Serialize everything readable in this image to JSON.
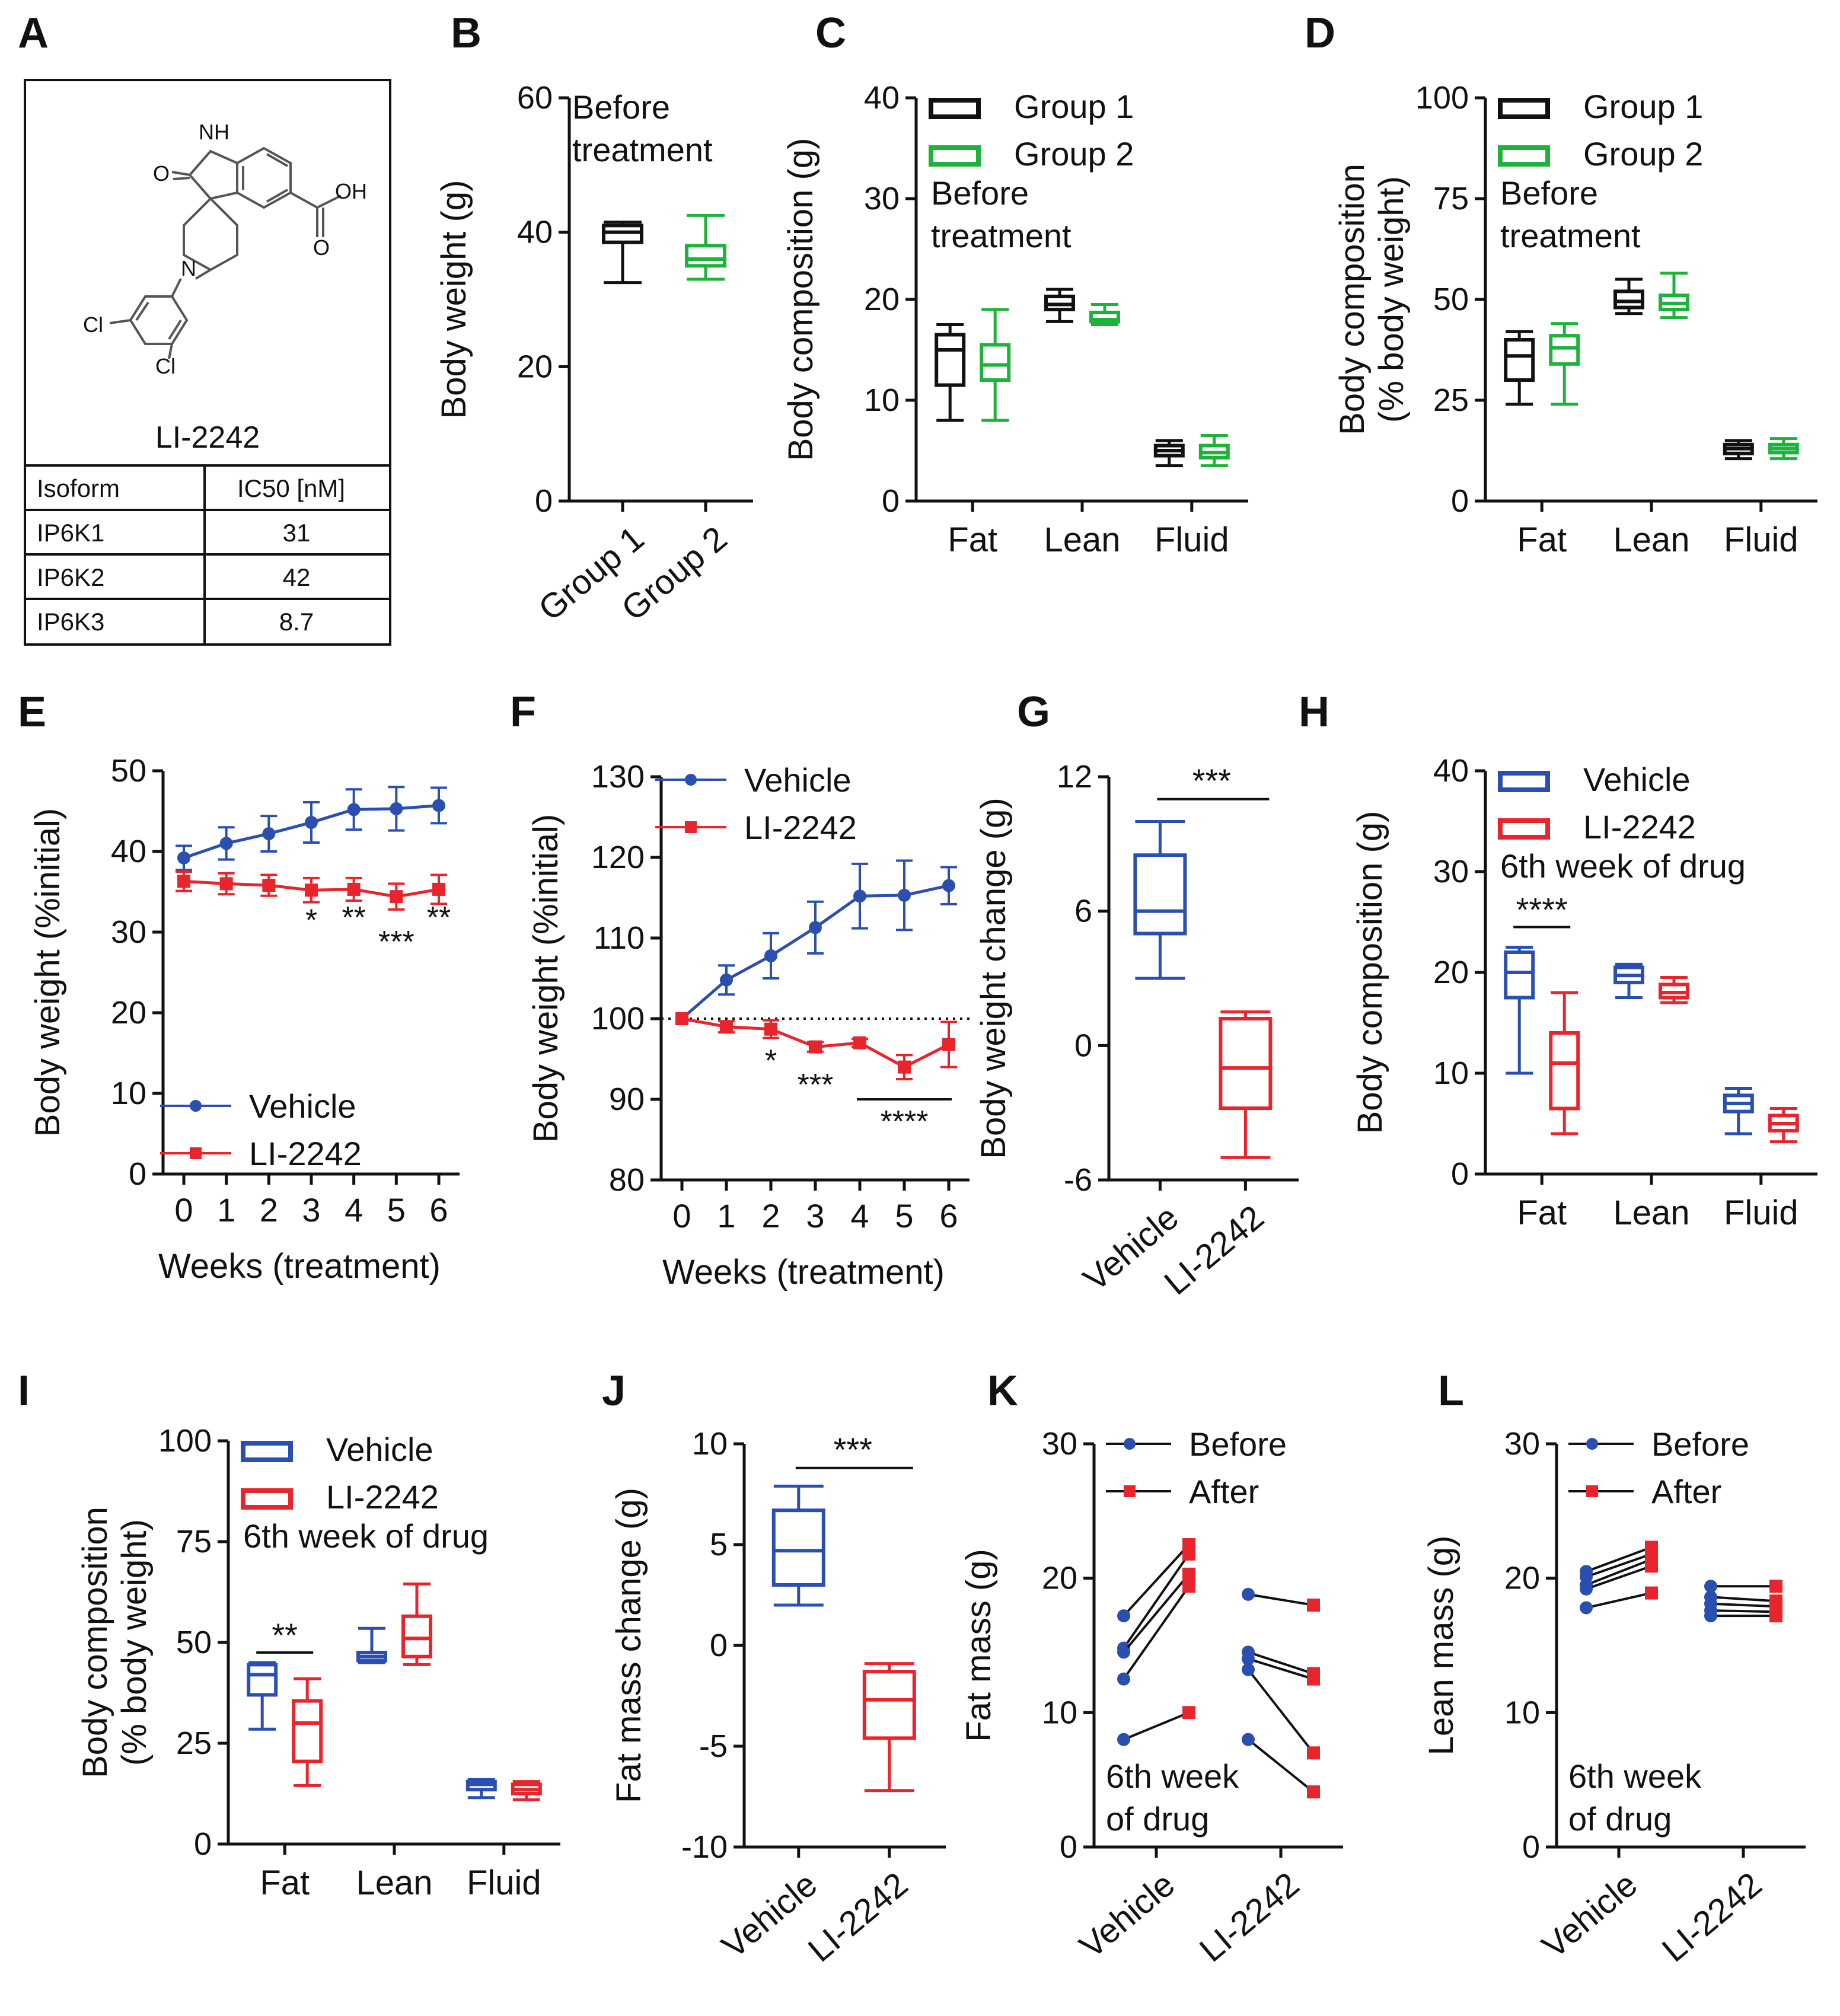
{
  "colors": {
    "black": "#111111",
    "green": "#1db33a",
    "blue": "#2a4fb0",
    "red": "#e8242c"
  },
  "panelA": {
    "letter": "A",
    "compound": "LI-2242",
    "atoms": [
      "O",
      "NH",
      "OH",
      "O",
      "N",
      "Cl",
      "Cl"
    ],
    "table": {
      "headers": [
        "Isoform",
        "IC50 [nM]"
      ],
      "rows": [
        [
          "IP6K1",
          "31"
        ],
        [
          "IP6K2",
          "42"
        ],
        [
          "IP6K3",
          "8.7"
        ]
      ]
    }
  },
  "chart_data": [
    {
      "id": "B",
      "type": "box",
      "letter": "B",
      "ylabel": "Body weight (g)",
      "ylim": [
        0,
        60
      ],
      "yticks": [
        "0",
        "20",
        "40",
        "60"
      ],
      "categories": [
        "Group 1",
        "Group 2"
      ],
      "annotation": [
        "Before",
        "treatment"
      ],
      "boxes": [
        {
          "series": "Group 1",
          "color": "black",
          "min": 32.5,
          "q1": 38.5,
          "median": 40,
          "q3": 41,
          "max": 41.5
        },
        {
          "series": "Group 2",
          "color": "green",
          "min": 33,
          "q1": 35,
          "median": 36,
          "q3": 38,
          "max": 42.5
        }
      ]
    },
    {
      "id": "C",
      "type": "box",
      "letter": "C",
      "ylabel": "Body composition (g)",
      "ylim": [
        0,
        40
      ],
      "yticks": [
        "0",
        "10",
        "20",
        "30",
        "40"
      ],
      "categories": [
        "Fat",
        "Lean",
        "Fluid"
      ],
      "legend": [
        "Group 1",
        "Group 2"
      ],
      "legend_colors": [
        "black",
        "green"
      ],
      "annotation": [
        "Before",
        "treatment"
      ],
      "boxes": [
        {
          "series": "Group 1",
          "color": "black",
          "min": 8,
          "q1": 11.5,
          "median": 15,
          "q3": 16.5,
          "max": 17.5
        },
        {
          "series": "Group 2",
          "color": "green",
          "min": 8,
          "q1": 12,
          "median": 13.5,
          "q3": 15.5,
          "max": 19
        },
        {
          "series": "Group 1",
          "color": "black",
          "min": 17.8,
          "q1": 19,
          "median": 19.5,
          "q3": 20.3,
          "max": 21
        },
        {
          "series": "Group 2",
          "color": "green",
          "min": 17.5,
          "q1": 17.8,
          "median": 18,
          "q3": 18.7,
          "max": 19.5
        },
        {
          "series": "Group 1",
          "color": "black",
          "min": 3.5,
          "q1": 4.5,
          "median": 5,
          "q3": 5.5,
          "max": 6
        },
        {
          "series": "Group 2",
          "color": "green",
          "min": 3.5,
          "q1": 4.3,
          "median": 4.8,
          "q3": 5.5,
          "max": 6.5
        }
      ]
    },
    {
      "id": "D",
      "type": "box",
      "letter": "D",
      "ylabel": [
        "Body composition",
        "(% body weight)"
      ],
      "ylim": [
        0,
        100
      ],
      "yticks": [
        "0",
        "25",
        "50",
        "75",
        "100"
      ],
      "categories": [
        "Fat",
        "Lean",
        "Fluid"
      ],
      "legend": [
        "Group 1",
        "Group 2"
      ],
      "legend_colors": [
        "black",
        "green"
      ],
      "annotation": [
        "Before",
        "treatment"
      ],
      "boxes": [
        {
          "series": "Group 1",
          "color": "black",
          "min": 24,
          "q1": 30,
          "median": 36,
          "q3": 40,
          "max": 42
        },
        {
          "series": "Group 2",
          "color": "green",
          "min": 24,
          "q1": 34,
          "median": 38,
          "q3": 41,
          "max": 44
        },
        {
          "series": "Group 1",
          "color": "black",
          "min": 46.5,
          "q1": 48,
          "median": 49.5,
          "q3": 52,
          "max": 55
        },
        {
          "series": "Group 2",
          "color": "green",
          "min": 45.5,
          "q1": 47.5,
          "median": 49,
          "q3": 51,
          "max": 56.5
        },
        {
          "series": "Group 1",
          "color": "black",
          "min": 10.5,
          "q1": 11.8,
          "median": 13,
          "q3": 14,
          "max": 15
        },
        {
          "series": "Group 2",
          "color": "green",
          "min": 10.5,
          "q1": 12,
          "median": 13,
          "q3": 14,
          "max": 15.5
        }
      ]
    },
    {
      "id": "E",
      "type": "line",
      "letter": "E",
      "ylabel": "Body weight (%initial)",
      "xlabel": "Weeks (treatment)",
      "ylim": [
        0,
        50
      ],
      "yticks": [
        "0",
        "10",
        "20",
        "30",
        "40",
        "50"
      ],
      "x": [
        0,
        1,
        2,
        3,
        4,
        5,
        6
      ],
      "series": [
        {
          "name": "Vehicle",
          "color": "blue",
          "marker": "circle",
          "values": [
            39.2,
            41,
            42.2,
            43.6,
            45.2,
            45.3,
            45.7
          ],
          "err": [
            1.5,
            2,
            2.2,
            2.5,
            2.5,
            2.7,
            2.2
          ]
        },
        {
          "name": "LI-2242",
          "color": "red",
          "marker": "square",
          "values": [
            36.3,
            36,
            35.8,
            35.2,
            35.3,
            34.4,
            35.3
          ],
          "err": [
            1.2,
            1.3,
            1.3,
            1.5,
            1.4,
            1.6,
            1.8
          ]
        }
      ],
      "stars": [
        {
          "x": 3,
          "y": 30.2,
          "text": "*"
        },
        {
          "x": 4,
          "y": 30.5,
          "text": "**"
        },
        {
          "x": 5,
          "y": 27.5,
          "text": "***"
        },
        {
          "x": 6,
          "y": 30.5,
          "text": "**"
        }
      ]
    },
    {
      "id": "F",
      "type": "line",
      "letter": "F",
      "ylabel": "Body weight (%initial)",
      "xlabel": "Weeks (treatment)",
      "ylim": [
        80,
        130
      ],
      "yticks": [
        "80",
        "90",
        "100",
        "110",
        "120",
        "130"
      ],
      "x": [
        0,
        1,
        2,
        3,
        4,
        5,
        6
      ],
      "reference_line": 100,
      "series": [
        {
          "name": "Vehicle",
          "color": "blue",
          "marker": "circle",
          "values": [
            100,
            104.8,
            107.8,
            111.3,
            115.2,
            115.3,
            116.5
          ],
          "err": [
            0,
            1.8,
            2.8,
            3.2,
            4,
            4.3,
            2.3
          ]
        },
        {
          "name": "LI-2242",
          "color": "red",
          "marker": "square",
          "values": [
            100,
            99,
            98.7,
            96.5,
            97,
            94,
            96.8
          ],
          "err": [
            0,
            0.7,
            1.1,
            0.6,
            0.5,
            1.5,
            2.8
          ]
        }
      ],
      "stars": [
        {
          "x": 2,
          "y": 93.5,
          "text": "*"
        },
        {
          "x": 3,
          "y": 90.5,
          "text": "***"
        }
      ],
      "bracket": {
        "x1": 4,
        "x2": 6,
        "y": 90,
        "text": "****"
      }
    },
    {
      "id": "G",
      "type": "box",
      "letter": "G",
      "ylabel": "Body weight change (g)",
      "ylim": [
        -6,
        12
      ],
      "yticks": [
        "-6",
        "0",
        "6",
        "12"
      ],
      "categories": [
        "Vehicle",
        "LI-2242"
      ],
      "boxes": [
        {
          "series": "Vehicle",
          "color": "blue",
          "min": 3,
          "q1": 5,
          "median": 6,
          "q3": 8.5,
          "max": 10
        },
        {
          "series": "LI-2242",
          "color": "red",
          "min": -5,
          "q1": -2.8,
          "median": -1,
          "q3": 1.2,
          "max": 1.5
        }
      ],
      "bracket": {
        "i1": 0,
        "i2": 1,
        "y": 11,
        "text": "***"
      }
    },
    {
      "id": "H",
      "type": "box",
      "letter": "H",
      "ylabel": "Body composition (g)",
      "ylim": [
        0,
        40
      ],
      "yticks": [
        "0",
        "10",
        "20",
        "30",
        "40"
      ],
      "categories": [
        "Fat",
        "Lean",
        "Fluid"
      ],
      "legend": [
        "Vehicle",
        "LI-2242"
      ],
      "legend_colors": [
        "blue",
        "red"
      ],
      "annotation": [
        "6th week of drug"
      ],
      "boxes": [
        {
          "series": "Vehicle",
          "color": "blue",
          "min": 10,
          "q1": 17.5,
          "median": 20,
          "q3": 22,
          "max": 22.5
        },
        {
          "series": "LI-2242",
          "color": "red",
          "min": 4,
          "q1": 6.5,
          "median": 11,
          "q3": 14,
          "max": 18
        },
        {
          "series": "Vehicle",
          "color": "blue",
          "min": 17.5,
          "q1": 19,
          "median": 19.7,
          "q3": 20.5,
          "max": 20.8
        },
        {
          "series": "LI-2242",
          "color": "red",
          "min": 17,
          "q1": 17.5,
          "median": 18,
          "q3": 18.8,
          "max": 19.5
        },
        {
          "series": "Vehicle",
          "color": "blue",
          "min": 4,
          "q1": 6.2,
          "median": 7,
          "q3": 7.8,
          "max": 8.5
        },
        {
          "series": "LI-2242",
          "color": "red",
          "min": 3.2,
          "q1": 4.3,
          "median": 5,
          "q3": 5.8,
          "max": 6.5
        }
      ],
      "bracket": {
        "i1": 0,
        "i2": 1,
        "y": 24.5,
        "text": "****"
      }
    },
    {
      "id": "I",
      "type": "box",
      "letter": "I",
      "ylabel": [
        "Body composition",
        "(% body weight)"
      ],
      "ylim": [
        0,
        100
      ],
      "yticks": [
        "0",
        "25",
        "50",
        "75",
        "100"
      ],
      "categories": [
        "Fat",
        "Lean",
        "Fluid"
      ],
      "legend": [
        "Vehicle",
        "LI-2242"
      ],
      "legend_colors": [
        "blue",
        "red"
      ],
      "annotation": [
        "6th week of drug"
      ],
      "boxes": [
        {
          "series": "Vehicle",
          "color": "blue",
          "min": 28.5,
          "q1": 37,
          "median": 42,
          "q3": 44.5,
          "max": 45
        },
        {
          "series": "LI-2242",
          "color": "red",
          "min": 14.5,
          "q1": 20.5,
          "median": 30,
          "q3": 35.5,
          "max": 41
        },
        {
          "series": "Vehicle",
          "color": "blue",
          "min": 45,
          "q1": 45.5,
          "median": 46.5,
          "q3": 47.5,
          "max": 53.5
        },
        {
          "series": "LI-2242",
          "color": "red",
          "min": 44.5,
          "q1": 46.5,
          "median": 51,
          "q3": 56.5,
          "max": 64.5
        },
        {
          "series": "Vehicle",
          "color": "blue",
          "min": 11.5,
          "q1": 13.5,
          "median": 14.8,
          "q3": 15.5,
          "max": 16
        },
        {
          "series": "LI-2242",
          "color": "red",
          "min": 11,
          "q1": 12.5,
          "median": 13.5,
          "q3": 14.8,
          "max": 15.5
        }
      ],
      "bracket": {
        "i1": 0,
        "i2": 1,
        "y": 47.5,
        "text": "**"
      }
    },
    {
      "id": "J",
      "type": "box",
      "letter": "J",
      "ylabel": "Fat mass change (g)",
      "ylim": [
        -10,
        10
      ],
      "yticks": [
        "-10",
        "-5",
        "0",
        "5",
        "10"
      ],
      "categories": [
        "Vehicle",
        "LI-2242"
      ],
      "boxes": [
        {
          "series": "Vehicle",
          "color": "blue",
          "min": 2,
          "q1": 3,
          "median": 4.7,
          "q3": 6.7,
          "max": 7.9
        },
        {
          "series": "LI-2242",
          "color": "red",
          "min": -7.2,
          "q1": -4.6,
          "median": -2.7,
          "q3": -1.3,
          "max": -0.9
        }
      ],
      "bracket": {
        "i1": 0,
        "i2": 1,
        "y": 8.8,
        "text": "***"
      }
    },
    {
      "id": "K",
      "type": "paired",
      "letter": "K",
      "ylabel": "Fat mass (g)",
      "ylim": [
        0,
        30
      ],
      "yticks": [
        "0",
        "10",
        "20",
        "30"
      ],
      "categories": [
        "Vehicle",
        "LI-2242"
      ],
      "legend": [
        "Before",
        "After"
      ],
      "legend_colors": [
        "blue",
        "red"
      ],
      "annotation": [
        "6th week",
        "of drug"
      ],
      "groups": [
        {
          "before": [
            17.2,
            14.8,
            14.5,
            12.5,
            8
          ],
          "after": [
            22.5,
            21.8,
            20.3,
            19.4,
            10
          ]
        },
        {
          "before": [
            18.8,
            14.5,
            14,
            13.2,
            8
          ],
          "after": [
            18,
            12.9,
            12.5,
            7,
            4.1
          ]
        }
      ]
    },
    {
      "id": "L",
      "type": "paired",
      "letter": "L",
      "ylabel": "Lean mass (g)",
      "ylim": [
        0,
        30
      ],
      "yticks": [
        "0",
        "10",
        "20",
        "30"
      ],
      "categories": [
        "Vehicle",
        "LI-2242"
      ],
      "legend": [
        "Before",
        "After"
      ],
      "legend_colors": [
        "blue",
        "red"
      ],
      "annotation": [
        "6th week",
        "of drug"
      ],
      "groups": [
        {
          "before": [
            20.5,
            20.1,
            19.5,
            19.2,
            17.8
          ],
          "after": [
            22.3,
            21.8,
            21.4,
            20.9,
            18.9
          ]
        },
        {
          "before": [
            19.4,
            18.6,
            18.1,
            17.6,
            17.2
          ],
          "after": [
            19.4,
            18.3,
            17.9,
            17.5,
            17.2
          ]
        }
      ]
    }
  ]
}
